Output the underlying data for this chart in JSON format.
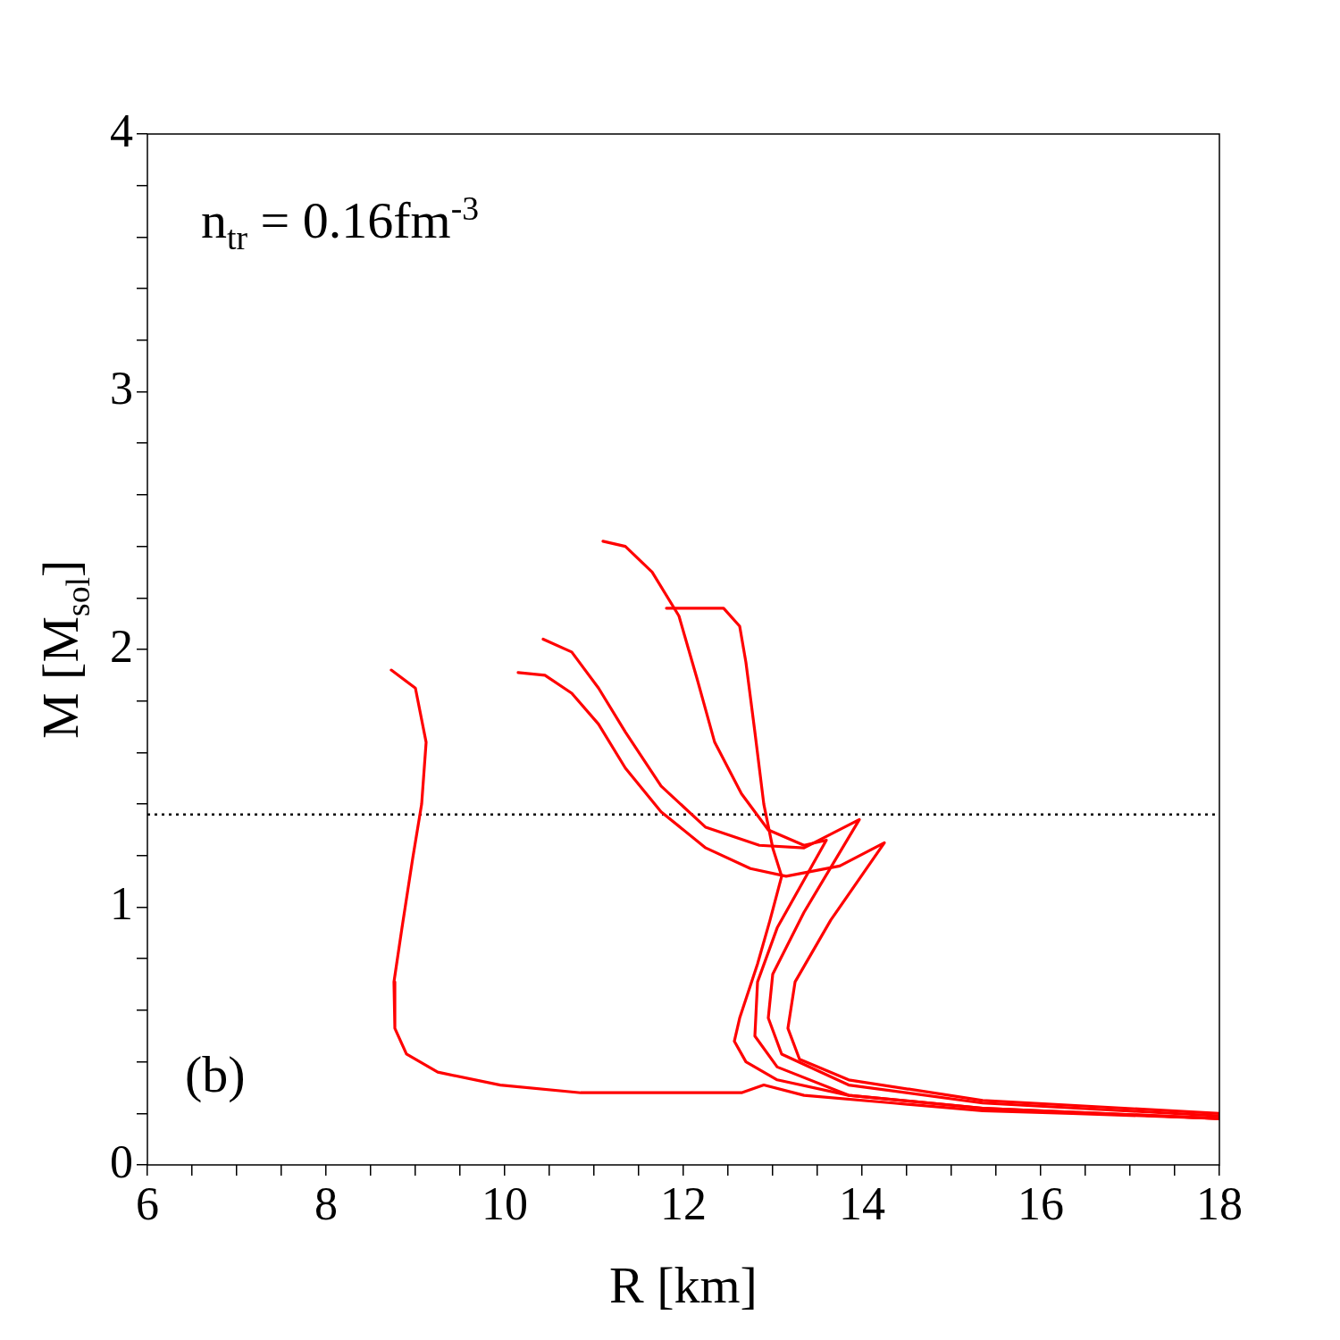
{
  "chart_data": {
    "type": "line",
    "xlabel": "R [km]",
    "ylabel": "M  [M$_{sol}$]",
    "annotations": [
      "n$_{tr}$ = 0.16fm$^{-3}$",
      "(b)"
    ],
    "xlim": [
      6,
      18
    ],
    "ylim": [
      0,
      4
    ],
    "xticks": [
      6,
      {
        "value": 6.5,
        "label": null
      },
      {
        "value": 7,
        "label": null
      },
      {
        "value": 7.5,
        "label": null
      },
      8,
      {
        "value": 8.5,
        "label": null
      },
      {
        "value": 9,
        "label": null
      },
      {
        "value": 9.5,
        "label": null
      },
      10,
      {
        "value": 10.5,
        "label": null
      },
      {
        "value": 11,
        "label": null
      },
      {
        "value": 11.5,
        "label": null
      },
      12,
      {
        "value": 12.5,
        "label": null
      },
      {
        "value": 13,
        "label": null
      },
      {
        "value": 13.5,
        "label": null
      },
      14,
      {
        "value": 14.5,
        "label": null
      },
      {
        "value": 15,
        "label": null
      },
      {
        "value": 15.5,
        "label": null
      },
      16,
      {
        "value": 16.5,
        "label": null
      },
      {
        "value": 17,
        "label": null
      },
      {
        "value": 17.5,
        "label": null
      },
      18
    ],
    "yticks": [
      0,
      {
        "value": 0.2,
        "label": null
      },
      {
        "value": 0.4,
        "label": null
      },
      {
        "value": 0.6,
        "label": null
      },
      {
        "value": 0.8,
        "label": null
      },
      1,
      {
        "value": 1.2,
        "label": null
      },
      {
        "value": 1.4,
        "label": null
      },
      {
        "value": 1.6,
        "label": null
      },
      {
        "value": 1.8,
        "label": null
      },
      2,
      {
        "value": 2.2,
        "label": null
      },
      {
        "value": 2.4,
        "label": null
      },
      {
        "value": 2.6,
        "label": null
      },
      {
        "value": 2.8,
        "label": null
      },
      3,
      {
        "value": 3.2,
        "label": null
      },
      {
        "value": 3.4,
        "label": null
      },
      {
        "value": 3.6,
        "label": null
      },
      {
        "value": 3.8,
        "label": null
      },
      4
    ],
    "grid": false,
    "legend": false,
    "marker": "none",
    "line_style": "solid",
    "ref_lines": [
      {
        "axis": "y",
        "value": 1.36,
        "color": "#000000",
        "line_style": "dotted"
      }
    ],
    "series": [
      {
        "color": "#ff0000",
        "x": [
          8.73,
          9.0,
          9.12,
          9.07,
          8.97,
          8.85,
          8.76,
          8.77,
          8.9,
          9.25,
          9.95,
          10.85,
          11.85,
          12.65,
          12.9,
          13.35,
          14.35,
          15.35,
          16.35,
          18
        ],
        "values": [
          1.92,
          1.85,
          1.64,
          1.4,
          1.19,
          0.92,
          0.71,
          0.53,
          0.43,
          0.36,
          0.31,
          0.28,
          0.28,
          0.28,
          0.31,
          0.27,
          0.24,
          0.21,
          0.2,
          0.18
        ]
      },
      {
        "color": "#ff0000",
        "x": [
          10.15,
          10.45,
          10.75,
          11.05,
          11.35,
          11.75,
          12.25,
          12.75,
          13.15,
          13.75,
          14.25,
          13.65,
          13.25,
          13.17,
          13.3,
          13.85,
          15.35,
          18
        ],
        "values": [
          1.91,
          1.9,
          1.83,
          1.71,
          1.54,
          1.37,
          1.23,
          1.15,
          1.12,
          1.16,
          1.25,
          0.95,
          0.71,
          0.53,
          0.41,
          0.33,
          0.25,
          0.2
        ]
      },
      {
        "color": "#ff0000",
        "x": [
          10.43,
          10.75,
          11.05,
          11.35,
          11.75,
          12.25,
          12.85,
          13.35,
          13.97,
          13.35,
          13.0,
          12.95,
          13.1,
          13.85,
          15.35,
          18
        ],
        "values": [
          2.04,
          1.99,
          1.85,
          1.68,
          1.47,
          1.31,
          1.24,
          1.23,
          1.34,
          0.98,
          0.74,
          0.57,
          0.43,
          0.31,
          0.24,
          0.19
        ]
      },
      {
        "color": "#ff0000",
        "x": [
          11.81,
          12.45,
          12.63,
          12.7,
          12.8,
          12.9,
          13.0,
          13.1,
          12.97,
          12.83,
          12.63,
          12.57,
          12.7,
          13.05,
          13.85,
          15.35,
          18
        ],
        "values": [
          2.16,
          2.16,
          2.09,
          1.95,
          1.68,
          1.4,
          1.23,
          1.12,
          0.95,
          0.78,
          0.57,
          0.48,
          0.4,
          0.33,
          0.27,
          0.22,
          0.18
        ]
      },
      {
        "color": "#ff0000",
        "x": [
          11.1,
          11.35,
          11.65,
          11.95,
          12.15,
          12.35,
          12.65,
          12.95,
          13.35,
          13.6,
          13.05,
          12.83,
          12.8,
          13.05,
          13.85,
          15.35,
          18
        ],
        "values": [
          2.42,
          2.4,
          2.3,
          2.13,
          1.89,
          1.64,
          1.44,
          1.3,
          1.24,
          1.26,
          0.92,
          0.71,
          0.5,
          0.38,
          0.27,
          0.22,
          0.18
        ]
      }
    ]
  }
}
